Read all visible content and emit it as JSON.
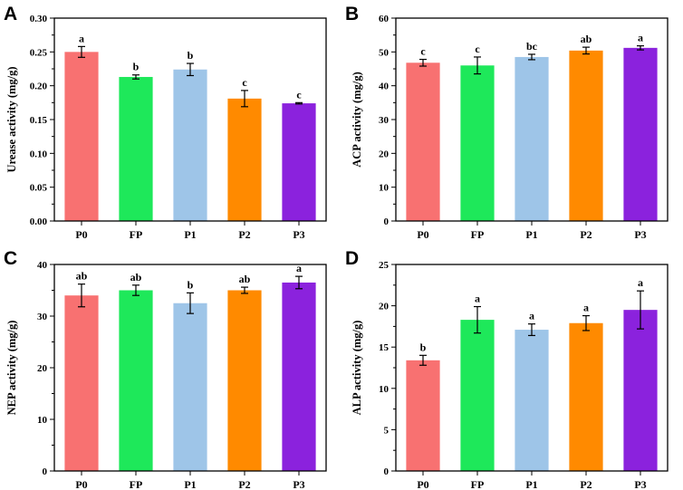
{
  "chart_data": [
    {
      "panel": "A",
      "type": "bar",
      "categories": [
        "P0",
        "FP",
        "P1",
        "P2",
        "P3"
      ],
      "values": [
        0.25,
        0.213,
        0.224,
        0.181,
        0.174
      ],
      "errors": [
        0.008,
        0.003,
        0.009,
        0.012,
        0.001
      ],
      "significance": [
        "a",
        "b",
        "b",
        "c",
        "c"
      ],
      "ylabel": "Urease activity (mg/g)",
      "xlabel": "",
      "ylim": [
        0,
        0.3
      ],
      "yticks": [
        "0.00",
        "0.05",
        "0.10",
        "0.15",
        "0.20",
        "0.25",
        "0.30"
      ],
      "colors": [
        "#F87171",
        "#1EE85A",
        "#9EC5E8",
        "#FF8A00",
        "#8B22DD"
      ]
    },
    {
      "panel": "B",
      "type": "bar",
      "categories": [
        "P0",
        "FP",
        "P1",
        "P2",
        "P3"
      ],
      "values": [
        46.8,
        46.0,
        48.5,
        50.4,
        51.2
      ],
      "errors": [
        1.0,
        2.5,
        0.8,
        1.0,
        0.6
      ],
      "significance": [
        "c",
        "c",
        "bc",
        "ab",
        "a"
      ],
      "ylabel": "ACP activity (mg/g)",
      "xlabel": "",
      "ylim": [
        0,
        60
      ],
      "yticks": [
        "0",
        "10",
        "20",
        "30",
        "40",
        "50",
        "60"
      ],
      "colors": [
        "#F87171",
        "#1EE85A",
        "#9EC5E8",
        "#FF8A00",
        "#8B22DD"
      ]
    },
    {
      "panel": "C",
      "type": "bar",
      "categories": [
        "P0",
        "FP",
        "P1",
        "P2",
        "P3"
      ],
      "values": [
        34.0,
        35.0,
        32.5,
        35.0,
        36.5
      ],
      "errors": [
        2.2,
        1.0,
        2.0,
        0.6,
        1.2
      ],
      "significance": [
        "ab",
        "ab",
        "b",
        "ab",
        "a"
      ],
      "ylabel": "NEP activity (mg/g)",
      "xlabel": "",
      "ylim": [
        0,
        40
      ],
      "yticks": [
        "0",
        "10",
        "20",
        "30",
        "40"
      ],
      "colors": [
        "#F87171",
        "#1EE85A",
        "#9EC5E8",
        "#FF8A00",
        "#8B22DD"
      ]
    },
    {
      "panel": "D",
      "type": "bar",
      "categories": [
        "P0",
        "FP",
        "P1",
        "P2",
        "P3"
      ],
      "values": [
        13.4,
        18.3,
        17.1,
        17.9,
        19.5
      ],
      "errors": [
        0.6,
        1.6,
        0.7,
        0.9,
        2.3
      ],
      "significance": [
        "b",
        "a",
        "a",
        "a",
        "a"
      ],
      "ylabel": "ALP activity (mg/g)",
      "xlabel": "",
      "ylim": [
        0,
        25
      ],
      "yticks": [
        "0",
        "5",
        "10",
        "15",
        "20",
        "25"
      ],
      "colors": [
        "#F87171",
        "#1EE85A",
        "#9EC5E8",
        "#FF8A00",
        "#8B22DD"
      ]
    }
  ]
}
